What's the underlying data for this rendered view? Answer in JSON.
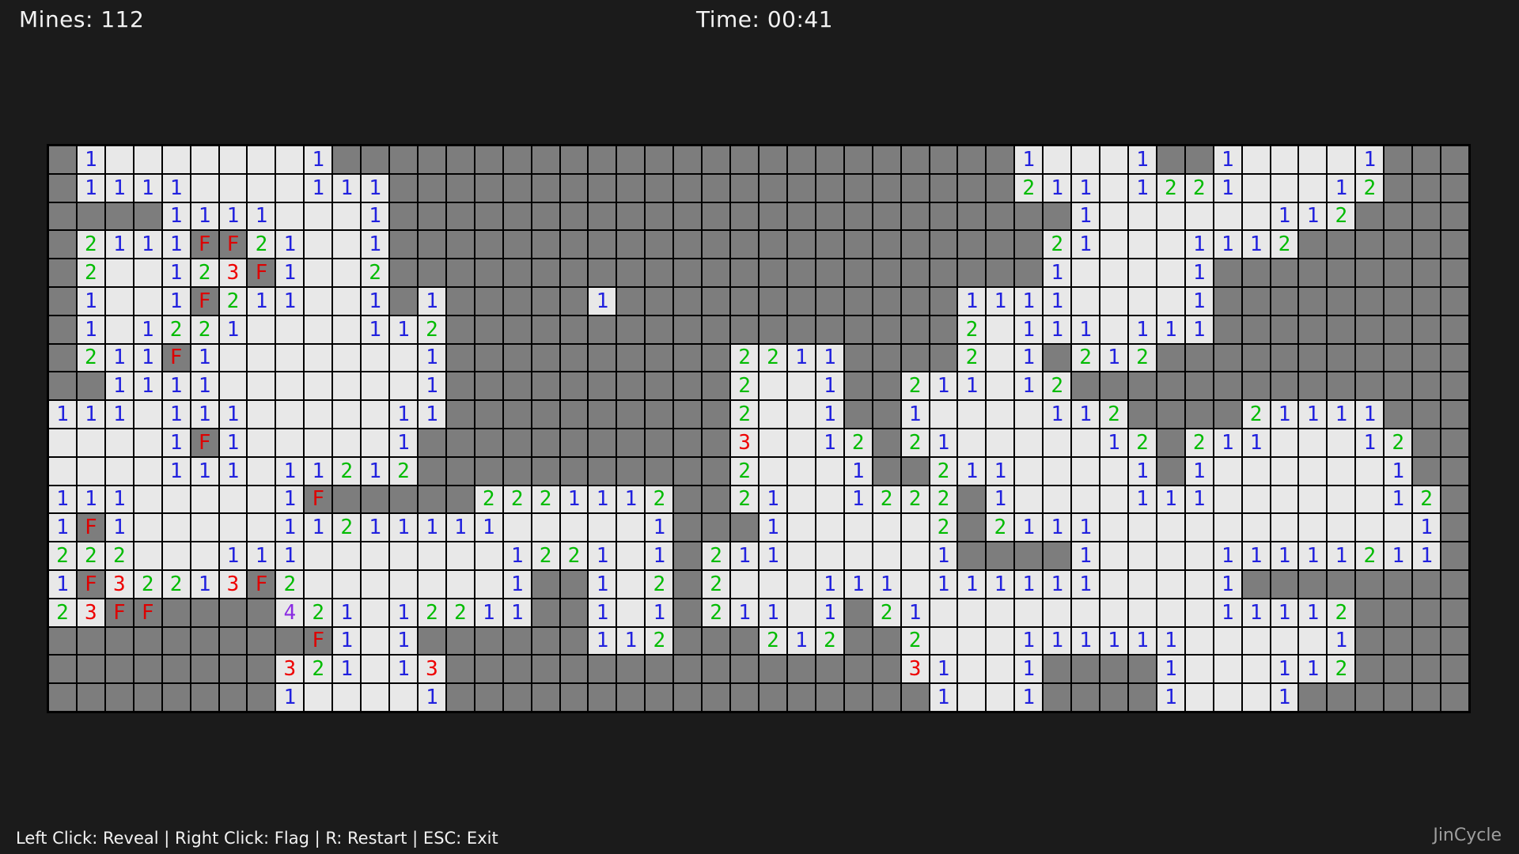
{
  "header": {
    "mines_label": "Mines: 112",
    "time_label": "Time: 00:41"
  },
  "footer": {
    "instructions": "Left Click: Reveal | Right Click: Flag | R: Restart | ESC: Exit",
    "credit": "JinCycle"
  },
  "board": {
    "rows": 20,
    "cols": 50,
    "legend": {
      "#": "hidden",
      ".": "revealed-empty",
      "F": "flag-on-hidden",
      "1": "number-1",
      "2": "number-2",
      "3": "number-3",
      "4": "number-4"
    },
    "grid": [
      "#1.......1########################1...1##1....1###",
      "#1111....111######################211.1221...12###",
      "####1111...1########################1......112####",
      "#2111FF21..1#######################21...1112######",
      "#2..123F1..2#######################1....1#########",
      "#1..1F211..1#1#####1############1111....1#########",
      "#1.1221....112##################2.111.111#########",
      "#211F1.......1##########2211####2.1#212###########",
      "##1111.......1##########2..1##211.12##############",
      "111.111.....11##########2..1##1....112####21111###",
      "....1F1.....1###########3..12#21.....12#211...12##",
      "....111.11212###########2...1##211....1#1......1##",
      "111.....1F#####2221112##21..1222#1....111......12#",
      "1F1.....11211111.....1###1.....2#2111...........1#",
      "222...111.......1221.1#211.....1####1....11111211#",
      "1F32213F2.......1##1.2#2...111.111111....1########",
      "23FF####421.12211##1.1#211.1#21..........11112####",
      "#########F1.1######112###212##2...111111.....1####",
      "########321.13################31..1####1...112####",
      "########1....1#################1..1####1...1######"
    ]
  },
  "colors": {
    "background": "#1b1b1b",
    "board_line": "#000000",
    "hidden_cell": "#7d7d7d",
    "revealed_cell": "#e8e8e8",
    "number_1": "#2121de",
    "number_2": "#00bb00",
    "number_3": "#ee0000",
    "number_4": "#8a2be2",
    "flag": "#dd0000",
    "header_text": "#f2f2f2",
    "footer_text": "#f2f2f2",
    "credit_text": "#9e9e9e"
  }
}
